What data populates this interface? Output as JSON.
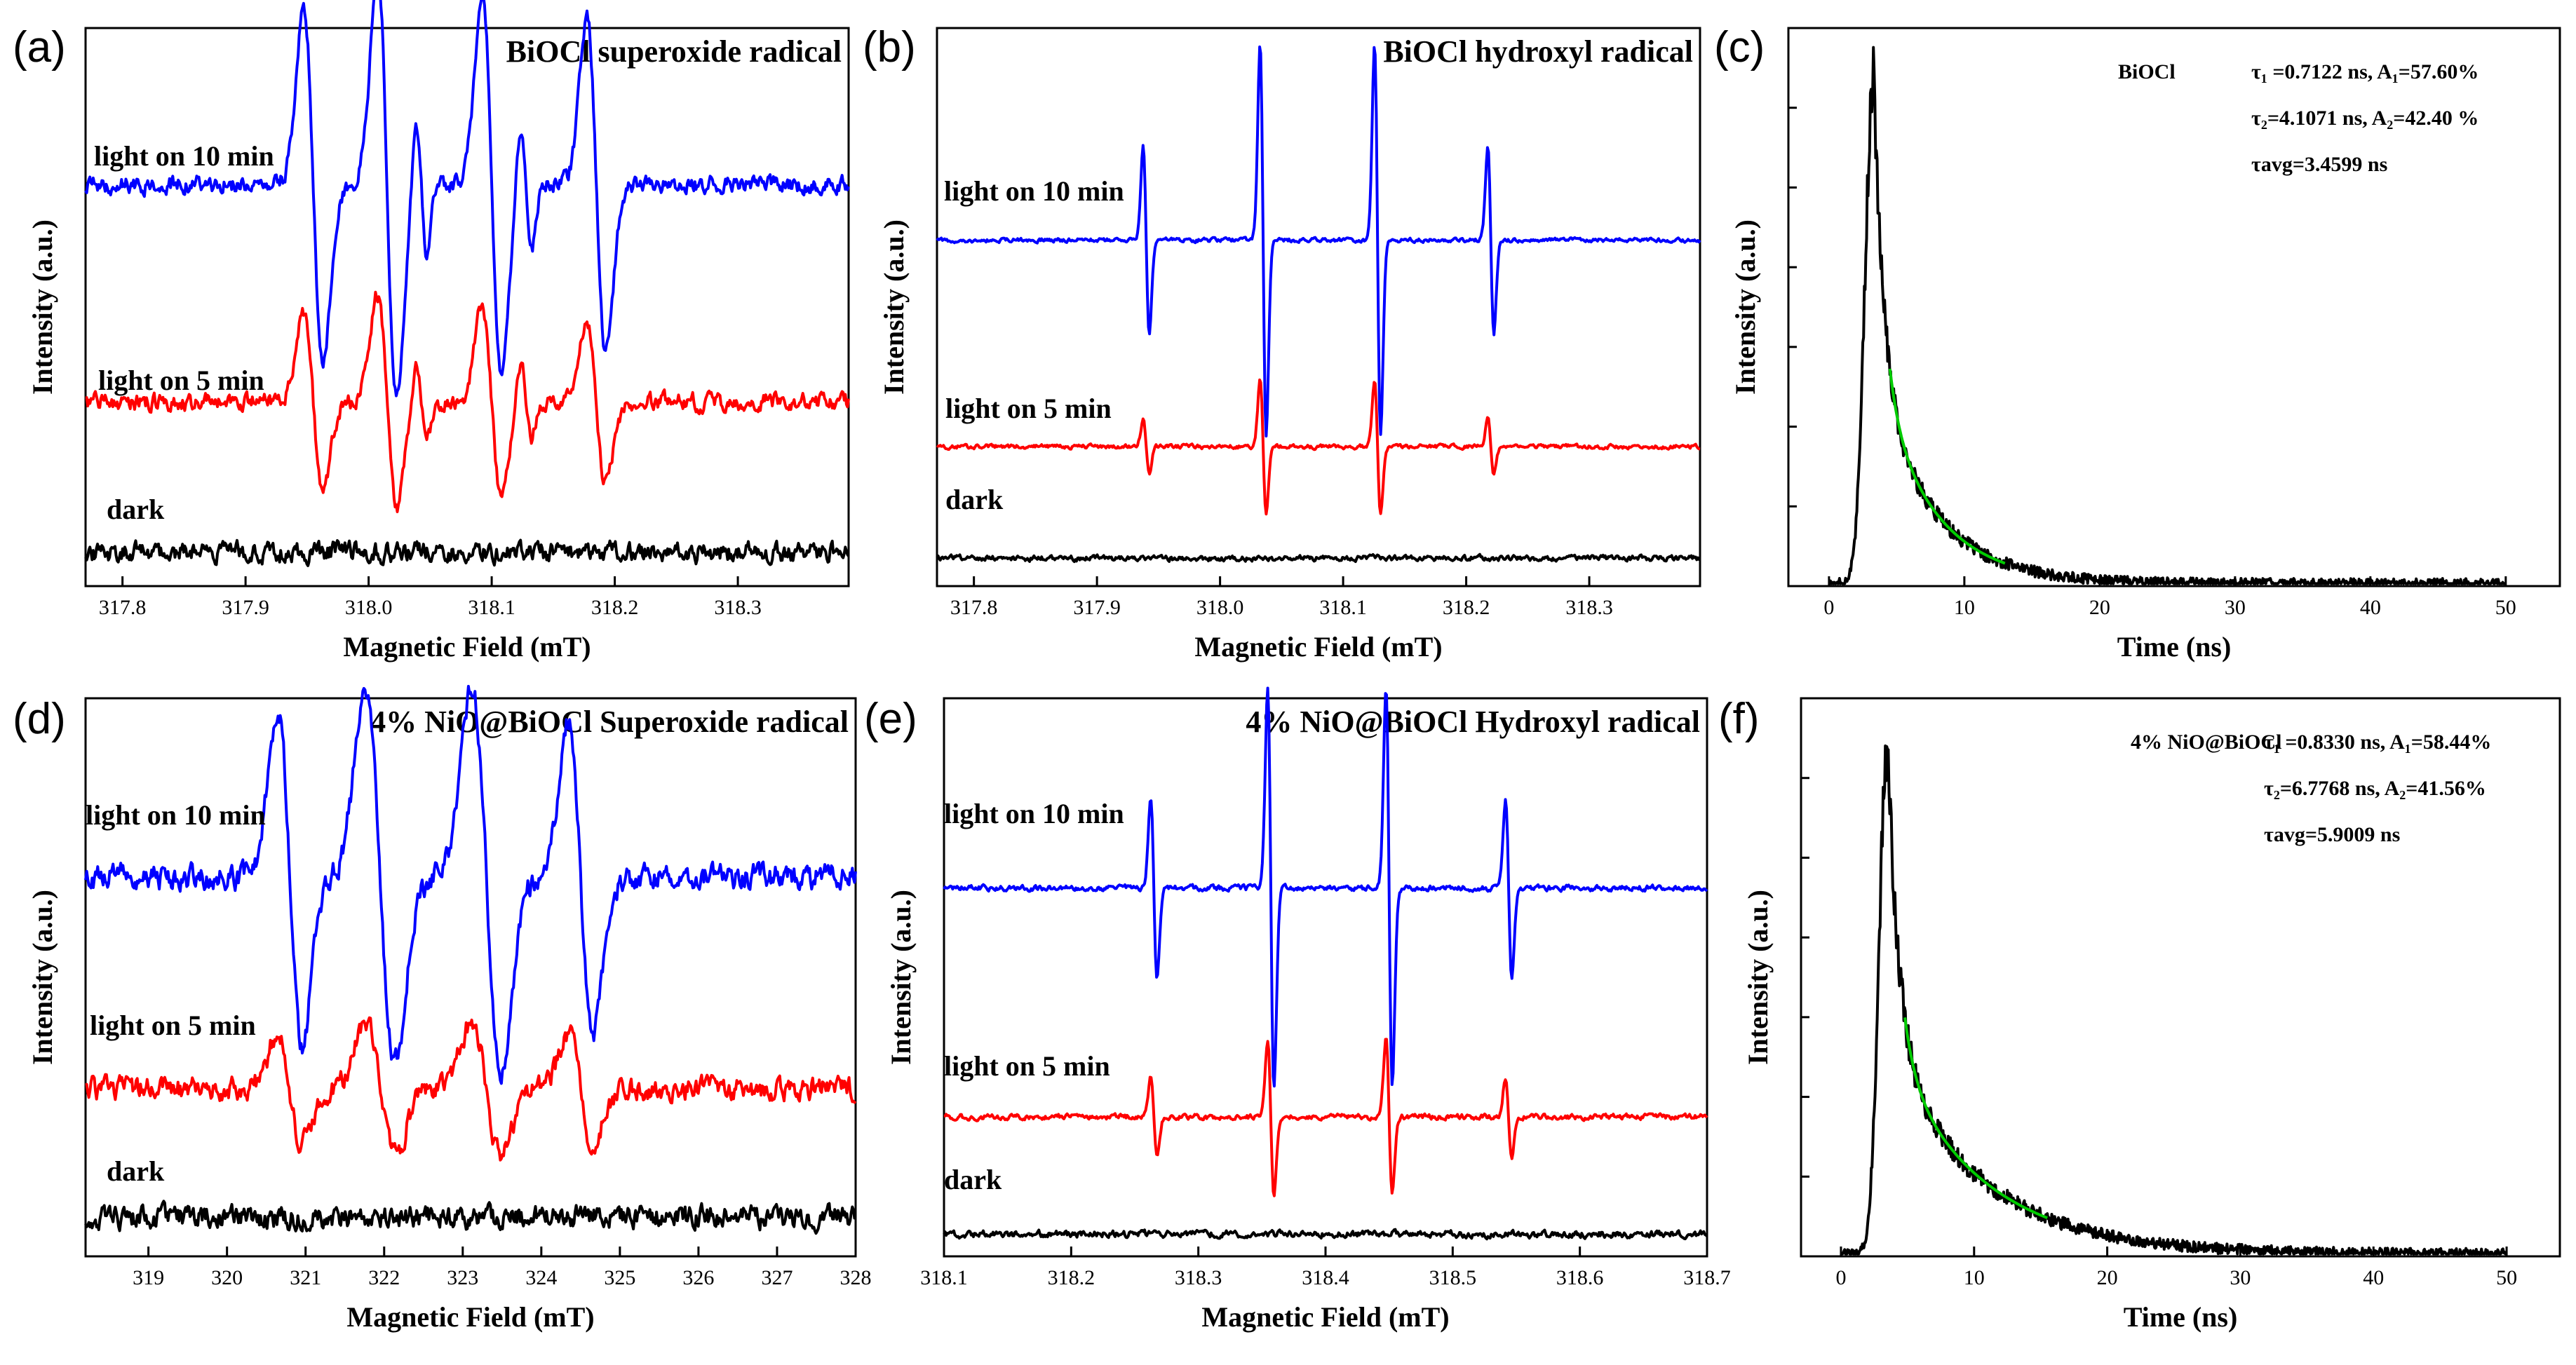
{
  "colors": {
    "light10": "#0000ff",
    "light5": "#ff0000",
    "dark": "#000000",
    "fit": "#00cc00"
  },
  "chart_data": [
    {
      "id": "a",
      "type": "line",
      "panel_label": "(a)",
      "title": "BiOCl superoxide radical",
      "xlabel": "Magnetic Field (mT)",
      "ylabel": "Intensity (a.u.)",
      "xlim": [
        317.77,
        318.39
      ],
      "xticks": [
        "317.8",
        "317.9",
        "318.0",
        "318.1",
        "318.2",
        "318.3"
      ],
      "series": [
        {
          "name": "light on 10 min",
          "color": "light10",
          "baseline": 0.72,
          "peaks": [
            {
              "x": 317.955,
              "amp": 0.32,
              "w": 0.011
            },
            {
              "x": 318.015,
              "amp": 0.38,
              "w": 0.011
            },
            {
              "x": 318.043,
              "amp": 0.12,
              "w": 0.006
            },
            {
              "x": 318.1,
              "amp": 0.34,
              "w": 0.011
            },
            {
              "x": 318.128,
              "amp": 0.12,
              "w": 0.006
            },
            {
              "x": 318.185,
              "amp": 0.3,
              "w": 0.011
            }
          ],
          "noise": 0.012,
          "seed": 3
        },
        {
          "name": "light on 5 min",
          "color": "light5",
          "baseline": 0.33,
          "peaks": [
            {
              "x": 317.955,
              "amp": 0.16,
              "w": 0.011
            },
            {
              "x": 318.015,
              "amp": 0.19,
              "w": 0.011
            },
            {
              "x": 318.043,
              "amp": 0.07,
              "w": 0.006
            },
            {
              "x": 318.1,
              "amp": 0.17,
              "w": 0.011
            },
            {
              "x": 318.128,
              "amp": 0.07,
              "w": 0.006
            },
            {
              "x": 318.185,
              "amp": 0.15,
              "w": 0.011
            }
          ],
          "noise": 0.012,
          "seed": 7
        },
        {
          "name": "dark",
          "color": "dark",
          "baseline": 0.06,
          "peaks": [],
          "noise": 0.014,
          "seed": 11
        }
      ]
    },
    {
      "id": "b",
      "type": "line",
      "panel_label": "(b)",
      "title": "BiOCl  hydroxyl radical",
      "xlabel": "Magnetic Field (mT)",
      "ylabel": "Intensity (a.u.)",
      "xlim": [
        317.77,
        318.39
      ],
      "xticks": [
        "317.8",
        "317.9",
        "318.0",
        "318.1",
        "318.2",
        "318.3"
      ],
      "series": [
        {
          "name": "light on 10 min",
          "color": "light10",
          "baseline": 0.62,
          "peaks": [
            {
              "x": 317.94,
              "amp": 0.17,
              "w": 0.0035
            },
            {
              "x": 318.035,
              "amp": 0.35,
              "w": 0.0035
            },
            {
              "x": 318.128,
              "amp": 0.35,
              "w": 0.0035
            },
            {
              "x": 318.22,
              "amp": 0.17,
              "w": 0.0035
            }
          ],
          "noise": 0.003,
          "seed": 5
        },
        {
          "name": "light on 5 min",
          "color": "light5",
          "baseline": 0.25,
          "peaks": [
            {
              "x": 317.94,
              "amp": 0.05,
              "w": 0.0035
            },
            {
              "x": 318.035,
              "amp": 0.12,
              "w": 0.0035
            },
            {
              "x": 318.128,
              "amp": 0.12,
              "w": 0.0035
            },
            {
              "x": 318.22,
              "amp": 0.05,
              "w": 0.0035
            }
          ],
          "noise": 0.003,
          "seed": 9
        },
        {
          "name": "dark",
          "color": "dark",
          "baseline": 0.05,
          "peaks": [],
          "noise": 0.004,
          "seed": 13
        }
      ]
    },
    {
      "id": "c",
      "type": "line",
      "panel_label": "(c)",
      "xlabel": "Time (ns)",
      "ylabel": "Intensity (a.u.)",
      "xlim": [
        -3,
        54
      ],
      "ylim": [
        0,
        1.1
      ],
      "xticks": [
        "0",
        "10",
        "20",
        "30",
        "40",
        "50"
      ],
      "sample": "BiOCl",
      "fit_lines": [
        "τ₁ =0.7122 ns, A₁=57.60%",
        "τ₂=4.1071 ns, A₂=42.40 %",
        "τavg=3.4599 ns"
      ],
      "decay": {
        "peak_t": 3.3,
        "rise": 0.9,
        "A1": 0.576,
        "tau1": 0.7122,
        "A2": 0.424,
        "tau2": 4.1071,
        "floor": 0.0,
        "fit_range": [
          4.5,
          13
        ]
      }
    },
    {
      "id": "d",
      "type": "line",
      "panel_label": "(d)",
      "title": "4% NiO@BiOCl Superoxide radical",
      "xlabel": "Magnetic Field (mT)",
      "ylabel": "Intensity (a.u.)",
      "xlim": [
        318.2,
        328
      ],
      "xticks": [
        "319",
        "320",
        "321",
        "322",
        "323",
        "324",
        "325",
        "326",
        "327",
        "328"
      ],
      "series": [
        {
          "name": "light on 10 min",
          "color": "light10",
          "baseline": 0.68,
          "peaks": [
            {
              "x": 320.8,
              "amp": 0.3,
              "w": 0.22
            },
            {
              "x": 321.95,
              "amp": 0.34,
              "w": 0.26
            },
            {
              "x": 323.3,
              "amp": 0.34,
              "w": 0.26
            },
            {
              "x": 324.5,
              "amp": 0.28,
              "w": 0.22
            }
          ],
          "noise": 0.018,
          "seed": 17
        },
        {
          "name": "light on 5 min",
          "color": "light5",
          "baseline": 0.3,
          "peaks": [
            {
              "x": 320.8,
              "amp": 0.1,
              "w": 0.22
            },
            {
              "x": 321.95,
              "amp": 0.12,
              "w": 0.26
            },
            {
              "x": 323.3,
              "amp": 0.12,
              "w": 0.26
            },
            {
              "x": 324.5,
              "amp": 0.1,
              "w": 0.22
            }
          ],
          "noise": 0.016,
          "seed": 19
        },
        {
          "name": "dark",
          "color": "dark",
          "baseline": 0.07,
          "peaks": [],
          "noise": 0.016,
          "seed": 23
        }
      ]
    },
    {
      "id": "e",
      "type": "line",
      "panel_label": "(e)",
      "title": "4% NiO@BiOCl  Hydroxyl radical",
      "xlabel": "Magnetic Field (mT)",
      "ylabel": "Intensity (a.u.)",
      "xlim": [
        318.1,
        318.7
      ],
      "xticks": [
        "318.1",
        "318.2",
        "318.3",
        "318.4",
        "318.5",
        "318.6",
        "318.7"
      ],
      "series": [
        {
          "name": "light on 10 min",
          "color": "light10",
          "baseline": 0.66,
          "peaks": [
            {
              "x": 318.265,
              "amp": 0.16,
              "w": 0.0035
            },
            {
              "x": 318.357,
              "amp": 0.36,
              "w": 0.0035
            },
            {
              "x": 318.45,
              "amp": 0.36,
              "w": 0.0035
            },
            {
              "x": 318.544,
              "amp": 0.16,
              "w": 0.0035
            }
          ],
          "noise": 0.004,
          "seed": 29
        },
        {
          "name": "light on 5 min",
          "color": "light5",
          "baseline": 0.25,
          "peaks": [
            {
              "x": 318.265,
              "amp": 0.07,
              "w": 0.0035
            },
            {
              "x": 318.357,
              "amp": 0.14,
              "w": 0.0035
            },
            {
              "x": 318.45,
              "amp": 0.14,
              "w": 0.0035
            },
            {
              "x": 318.544,
              "amp": 0.07,
              "w": 0.0035
            }
          ],
          "noise": 0.004,
          "seed": 31
        },
        {
          "name": "dark",
          "color": "dark",
          "baseline": 0.04,
          "peaks": [],
          "noise": 0.005,
          "seed": 37
        }
      ]
    },
    {
      "id": "f",
      "type": "line",
      "panel_label": "(f)",
      "xlabel": "Time (ns)",
      "ylabel": "Intensity (a.u.)",
      "xlim": [
        -3,
        54
      ],
      "ylim": [
        0,
        1.1
      ],
      "xticks": [
        "0",
        "10",
        "20",
        "30",
        "40",
        "50"
      ],
      "sample": "4% NiO@BiOCl",
      "fit_lines": [
        "τ₁ =0.8330 ns, A₁=58.44%",
        "τ₂=6.7768 ns, A₂=41.56%",
        "τavg=5.9009 ns"
      ],
      "decay": {
        "peak_t": 3.5,
        "rise": 0.9,
        "A1": 0.5844,
        "tau1": 0.833,
        "A2": 0.4156,
        "tau2": 6.7768,
        "floor": 0.0,
        "fit_range": [
          4.8,
          15.5
        ]
      }
    }
  ]
}
